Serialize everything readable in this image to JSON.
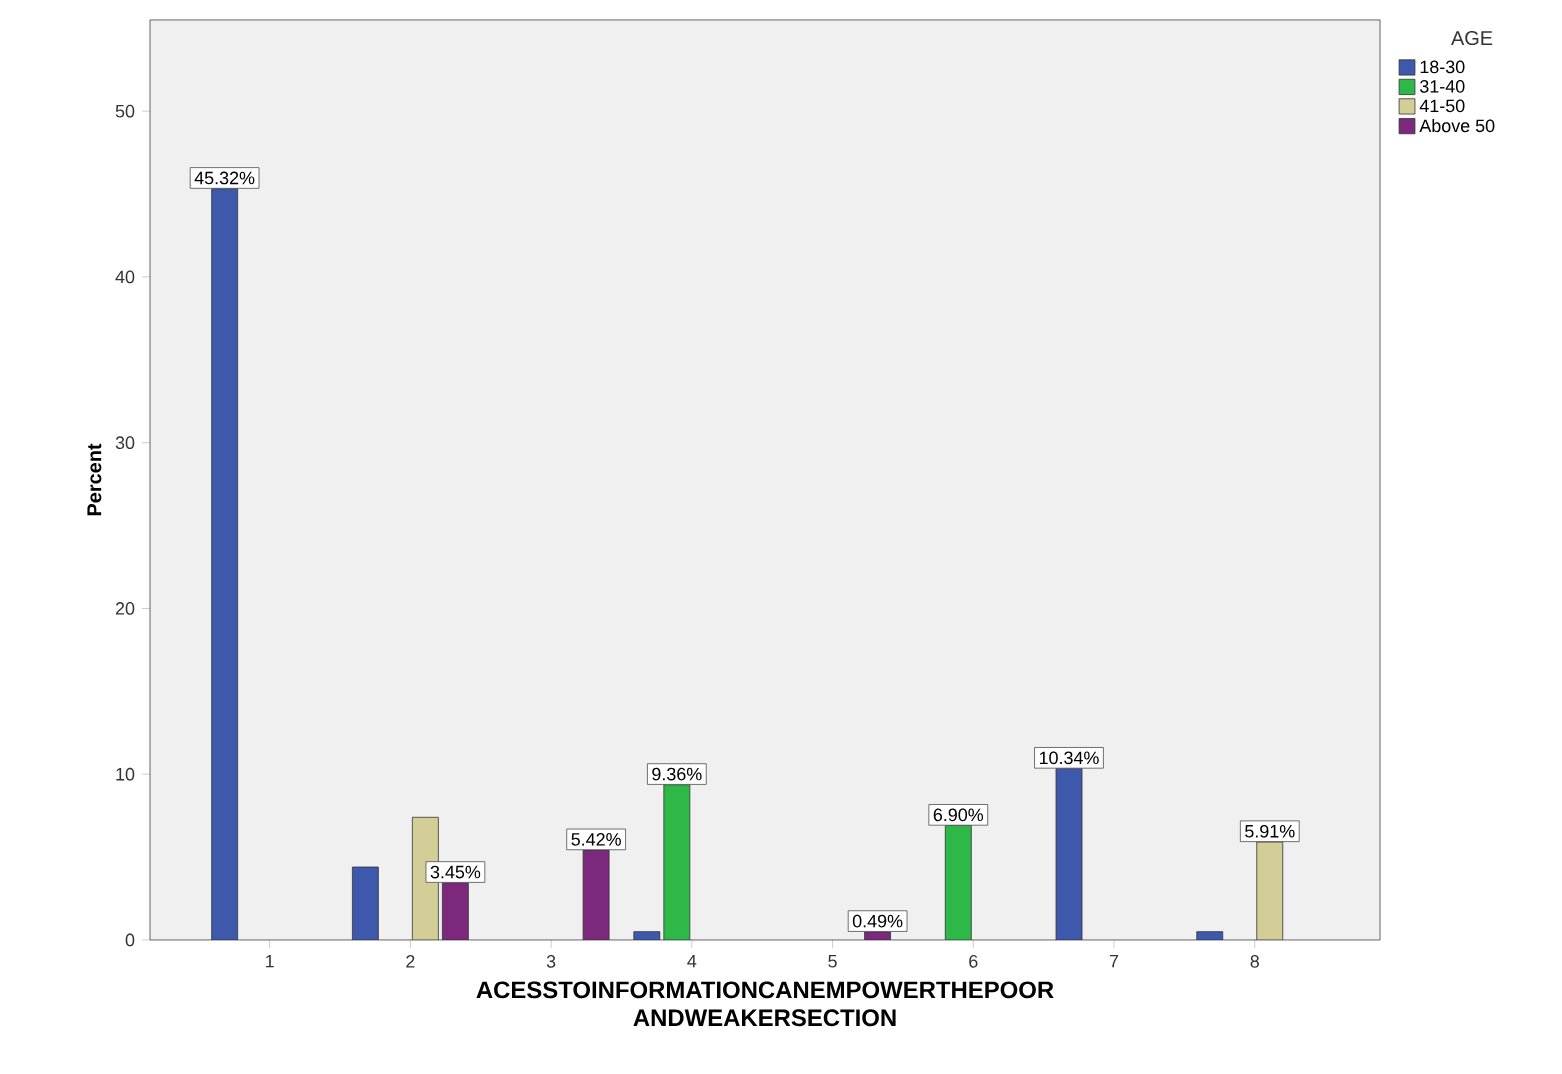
{
  "chart_data": {
    "type": "bar",
    "xlabel": "ACESSTOINFORMATIONCANEMPOWERTHEPOOR ANDWEAKERSECTION",
    "ylabel": "Percent",
    "legend_title": "AGE",
    "categories": [
      "1",
      "2",
      "3",
      "4",
      "5",
      "6",
      "7",
      "8"
    ],
    "series": [
      {
        "name": "18-30",
        "color": "#3e58ac",
        "values": [
          45.32,
          4.4,
          null,
          0.5,
          null,
          null,
          10.34,
          0.5
        ],
        "value_labels": [
          "45.32%",
          null,
          null,
          null,
          null,
          null,
          "10.34%",
          null
        ]
      },
      {
        "name": "31-40",
        "color": "#2eb848",
        "values": [
          null,
          null,
          null,
          9.36,
          null,
          6.9,
          null,
          null
        ],
        "value_labels": [
          null,
          null,
          null,
          "9.36%",
          null,
          "6.90%",
          null,
          null
        ]
      },
      {
        "name": "41-50",
        "color": "#d3ce97",
        "values": [
          null,
          7.4,
          null,
          null,
          null,
          null,
          null,
          5.91
        ],
        "value_labels": [
          null,
          null,
          null,
          null,
          null,
          null,
          null,
          "5.91%"
        ]
      },
      {
        "name": "Above 50",
        "color": "#7c287d",
        "values": [
          null,
          3.45,
          5.42,
          null,
          0.49,
          null,
          null,
          null
        ],
        "value_labels": [
          null,
          "3.45%",
          "5.42%",
          null,
          "0.49%",
          null,
          null,
          null
        ]
      }
    ],
    "ylim": [
      0,
      55.5
    ],
    "yticks": [
      0,
      10,
      20,
      30,
      40,
      50
    ],
    "legend": "top right",
    "grid": false
  }
}
